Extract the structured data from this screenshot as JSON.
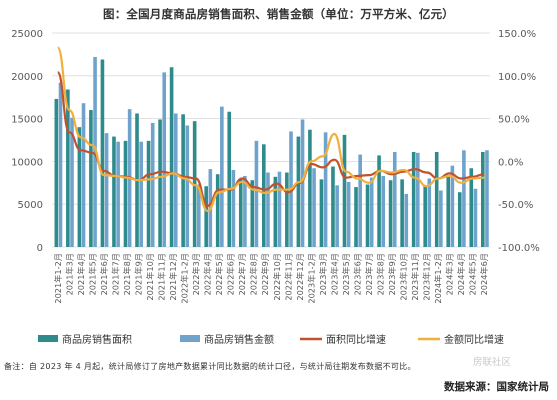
{
  "title": "图：全国月度商品房销售面积、销售金额（单位：万平方米、亿元）",
  "note": "备注：自 2023 年 4 月起，统计局修订了房地产数据累计同比数据的统计口径，与统计局往期发布数据不可比。",
  "source": "数据来源：国家统计局",
  "watermark": "房联社区",
  "colors": {
    "area_bar": "#2e8b8b",
    "amount_bar": "#6fa3cc",
    "area_line": "#c0532e",
    "amount_line": "#f0b040",
    "grid": "#d9d9d9",
    "axis_text": "#595959"
  },
  "chart_data": {
    "type": "bar",
    "categories": [
      "2021年1-2月",
      "2021年3月",
      "2021年4月",
      "2021年5月",
      "2021年6月",
      "2021年7月",
      "2021年8月",
      "2021年9月",
      "2021年10月",
      "2021年11月",
      "2021年12月",
      "2022年1-2月",
      "2022年3月",
      "2022年4月",
      "2022年5月",
      "2022年6月",
      "2022年7月",
      "2022年8月",
      "2022年9月",
      "2022年10月",
      "2022年11月",
      "2022年12月",
      "2023年1-2月",
      "2023年3月",
      "2023年4月",
      "2023年5月",
      "2023年6月",
      "2023年7月",
      "2023年8月",
      "2023年9月",
      "2023年10月",
      "2023年11月",
      "2023年12月",
      "2024年1-2月",
      "2024年3月",
      "2024年4月",
      "2024年5月",
      "2024年6月"
    ],
    "x_tick_labels": [
      "2021年1-2月",
      "2021年3月",
      "2021年4月",
      "2021年5月",
      "2021年6月",
      "2021年7月",
      "2021年8月",
      "2021年9月",
      "2021年10月",
      "2021年11月",
      "2021年12月",
      "2022年1-2月",
      "2022年3月",
      "2022年4月",
      "2022年5月",
      "2022年6月",
      "2022年7月",
      "2022年8月",
      "2022年9月",
      "2022年10月",
      "2022年11月",
      "2022年12月",
      "2023年1-2月",
      "2023年3月",
      "2023年4月",
      "2023年5月",
      "2023年6月",
      "2023年7月",
      "2023年8月",
      "2023年9月",
      "2023年10月",
      "2023年11月",
      "2023年12月",
      "2024年1-2月",
      "2024年3月",
      "2024年4月",
      "2024年5月",
      "2024年6月"
    ],
    "series": [
      {
        "name": "商品房销售面积",
        "axis": "left",
        "kind": "bar",
        "values": [
          17300,
          18400,
          14000,
          16000,
          21900,
          12900,
          12400,
          15600,
          12400,
          14900,
          21000,
          15500,
          14700,
          7100,
          8500,
          15800,
          8000,
          7800,
          12000,
          8200,
          8700,
          12900,
          13700,
          7900,
          9400,
          13100,
          7000,
          7300,
          10700,
          7800,
          7900,
          11100,
          7200,
          11100,
          8200,
          6400,
          9200,
          11100
        ]
      },
      {
        "name": "商品房销售金额",
        "axis": "left",
        "kind": "bar",
        "values": [
          19200,
          15100,
          16800,
          22200,
          13300,
          12300,
          16100,
          12300,
          14500,
          20400,
          15600,
          14200,
          7300,
          9100,
          16400,
          9000,
          8300,
          12400,
          8700,
          8800,
          13500,
          14900,
          9200,
          13400,
          7200,
          7600,
          10800,
          8100,
          8300,
          11100,
          6200,
          11000,
          8000,
          6600,
          9500,
          11300,
          6800,
          11300
        ]
      },
      {
        "name": "面积同比增速",
        "axis": "right",
        "kind": "line",
        "unit": "%",
        "values": [
          104,
          34,
          13,
          10,
          -11,
          -17,
          -18,
          -22,
          -15,
          -12,
          -14,
          -18,
          -20,
          -52,
          -33,
          -33,
          -20,
          -30,
          -33,
          -26,
          -36,
          -25,
          -3,
          -7,
          2,
          -19,
          -17,
          -16,
          -11,
          -15,
          -12,
          -9,
          -13,
          -20,
          -14,
          -20,
          -18,
          -15
        ]
      },
      {
        "name": "金额同比增速",
        "axis": "right",
        "kind": "line",
        "unit": "%",
        "values": [
          133,
          60,
          28,
          19,
          -16,
          -17,
          -19,
          -22,
          -21,
          -18,
          -14,
          -20,
          -28,
          -58,
          -36,
          -32,
          -24,
          -33,
          -37,
          -33,
          -33,
          -24,
          0,
          6,
          32,
          -12,
          -20,
          -25,
          -11,
          -13,
          -10,
          -19,
          -29,
          -20,
          -17,
          -25,
          -20,
          -19
        ]
      }
    ],
    "left_axis": {
      "ylim": [
        0,
        25000
      ],
      "ticks": [
        0,
        5000,
        10000,
        15000,
        20000,
        25000
      ]
    },
    "right_axis": {
      "ylim": [
        -100,
        150
      ],
      "ticks": [
        "-100.0%",
        "-50.0%",
        "0.0%",
        "50.0%",
        "100.0%",
        "150.0%"
      ]
    },
    "grid": true,
    "legend": "bottom"
  }
}
